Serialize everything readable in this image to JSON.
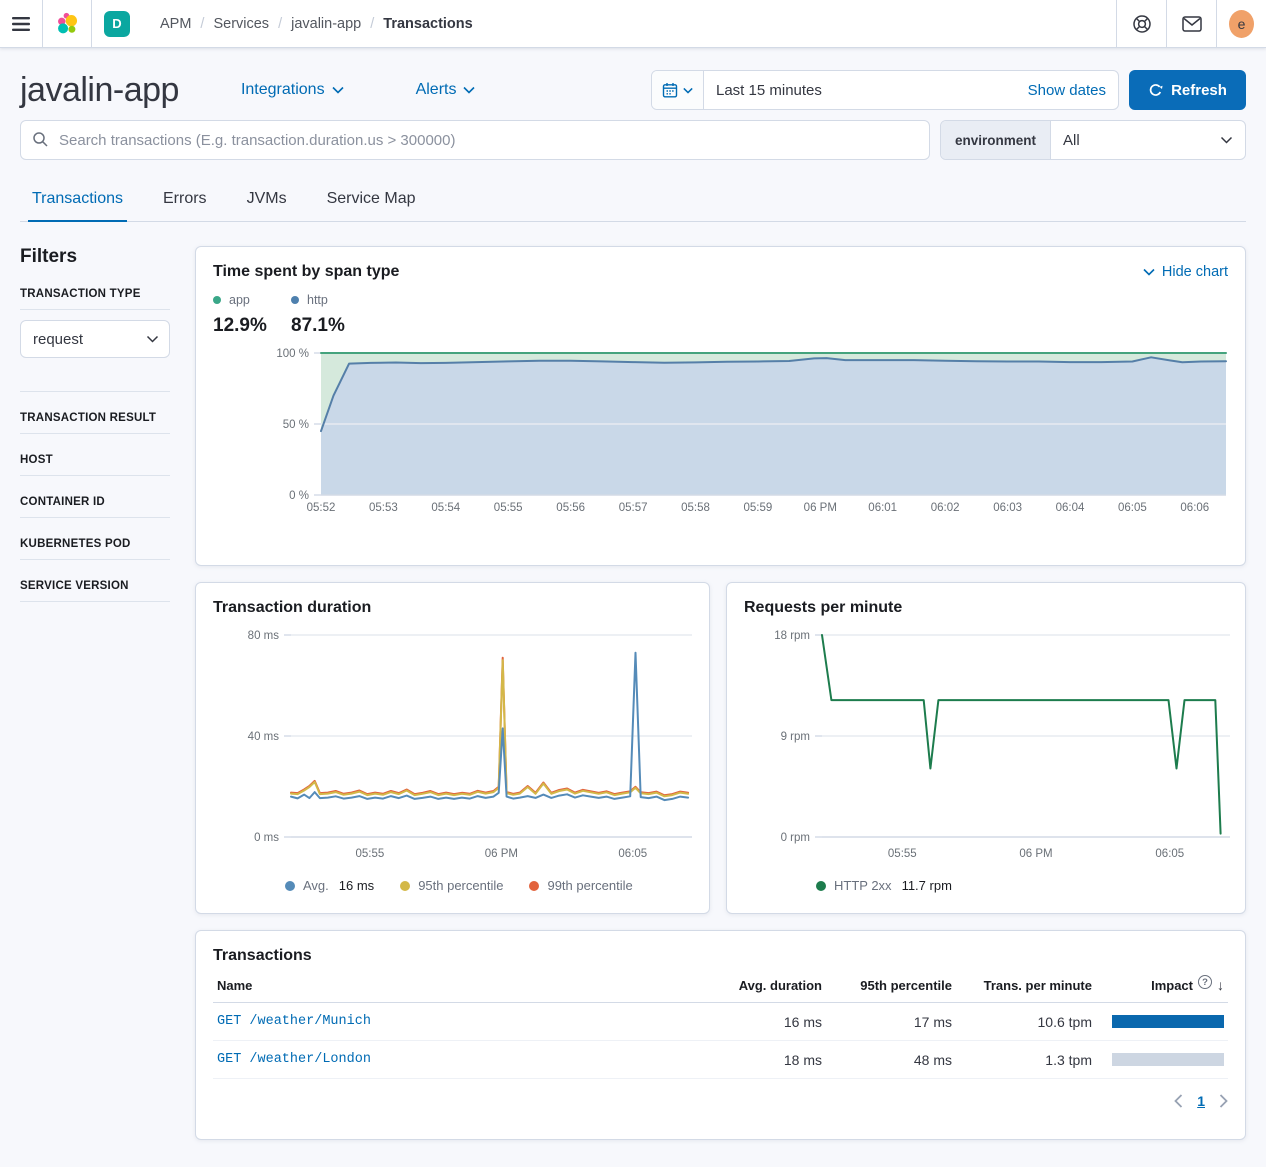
{
  "topbar": {
    "breadcrumbs": [
      "APM",
      "Services",
      "javalin-app",
      "Transactions"
    ],
    "space_badge": "D",
    "avatar_initial": "e"
  },
  "header": {
    "title": "javalin-app",
    "integrations_label": "Integrations",
    "alerts_label": "Alerts",
    "time_range": "Last 15 minutes",
    "show_dates_label": "Show dates",
    "refresh_label": "Refresh"
  },
  "search": {
    "placeholder": "Search transactions (E.g. transaction.duration.us > 300000)",
    "environment_label": "environment",
    "environment_value": "All"
  },
  "tabs": [
    {
      "label": "Transactions",
      "active": true
    },
    {
      "label": "Errors",
      "active": false
    },
    {
      "label": "JVMs",
      "active": false
    },
    {
      "label": "Service Map",
      "active": false
    }
  ],
  "filters": {
    "heading": "Filters",
    "type_facet_label": "TRANSACTION TYPE",
    "type_value": "request",
    "collapsed_facets": [
      "TRANSACTION RESULT",
      "HOST",
      "CONTAINER ID",
      "KUBERNETES POD",
      "SERVICE VERSION"
    ]
  },
  "span_panel": {
    "title": "Time spent by span type",
    "hide_chart_label": "Hide chart",
    "legend": [
      {
        "label": "app",
        "color": "#3aa788",
        "value": "12.9%"
      },
      {
        "label": "http",
        "color": "#4e80ae",
        "value": "87.1%"
      }
    ]
  },
  "duration_panel": {
    "title": "Transaction duration",
    "legend": [
      {
        "label": "Avg.",
        "value": "16 ms",
        "color": "#558bb8"
      },
      {
        "label": "95th percentile",
        "value": "",
        "color": "#d3b848"
      },
      {
        "label": "99th percentile",
        "value": "",
        "color": "#e2633d"
      }
    ]
  },
  "rpm_panel": {
    "title": "Requests per minute",
    "legend": [
      {
        "label": "HTTP 2xx",
        "value": "11.7 rpm",
        "color": "#1d7c4d"
      }
    ]
  },
  "table_panel": {
    "title": "Transactions",
    "columns": [
      "Name",
      "Avg. duration",
      "95th percentile",
      "Trans. per minute",
      "Impact"
    ],
    "rows": [
      {
        "name": "GET /weather/Munich",
        "avg_duration": "16 ms",
        "p95": "17 ms",
        "tpm": "10.6 tpm",
        "impact_pct": 100
      },
      {
        "name": "GET /weather/London",
        "avg_duration": "18 ms",
        "p95": "48 ms",
        "tpm": "1.3 tpm",
        "impact_pct": 0
      }
    ],
    "impact_fill": "#0a68ae",
    "impact_track": "#cdd6e2",
    "page": "1"
  },
  "chart_data": [
    {
      "type": "area",
      "title": "Time spent by span type",
      "subtitle": "stacked percentage of time by span type; app 12.9%, http 87.1%",
      "x_range": [
        0,
        14.5
      ],
      "y_range": [
        0,
        100
      ],
      "y_ticks": [
        {
          "v": 0,
          "label": "0 %"
        },
        {
          "v": 50,
          "label": "50 %"
        },
        {
          "v": 100,
          "label": "100 %"
        }
      ],
      "x_ticks": [
        {
          "v": 0,
          "label": "05:52"
        },
        {
          "v": 1,
          "label": "05:53"
        },
        {
          "v": 2,
          "label": "05:54"
        },
        {
          "v": 3,
          "label": "05:55"
        },
        {
          "v": 4,
          "label": "05:56"
        },
        {
          "v": 5,
          "label": "05:57"
        },
        {
          "v": 6,
          "label": "05:58"
        },
        {
          "v": 7,
          "label": "05:59"
        },
        {
          "v": 8,
          "label": "06 PM"
        },
        {
          "v": 9,
          "label": "06:01"
        },
        {
          "v": 10,
          "label": "06:02"
        },
        {
          "v": 11,
          "label": "06:03"
        },
        {
          "v": 12,
          "label": "06:04"
        },
        {
          "v": 13,
          "label": "06:05"
        },
        {
          "v": 14,
          "label": "06:06"
        }
      ],
      "series": [
        {
          "name": "app",
          "stroke": "#44a37d",
          "fill": "#d5e9dc",
          "points": [
            [
              0,
              100
            ],
            [
              14.5,
              100
            ]
          ]
        },
        {
          "name": "http",
          "stroke": "#557fa8",
          "fill": "#c9d8e8",
          "points": [
            [
              0,
              45
            ],
            [
              0.2,
              70
            ],
            [
              0.45,
              92.5
            ],
            [
              0.8,
              93
            ],
            [
              1.2,
              93.3
            ],
            [
              1.6,
              92.9
            ],
            [
              2,
              93
            ],
            [
              2.5,
              93.6
            ],
            [
              3,
              94.1
            ],
            [
              3.5,
              94.6
            ],
            [
              4,
              94.6
            ],
            [
              4.5,
              94.1
            ],
            [
              5,
              93.6
            ],
            [
              5.5,
              93.1
            ],
            [
              6,
              93.4
            ],
            [
              6.5,
              93.9
            ],
            [
              7,
              94
            ],
            [
              7.5,
              94.4
            ],
            [
              7.9,
              96.2
            ],
            [
              8.1,
              96.4
            ],
            [
              8.4,
              95
            ],
            [
              9,
              95
            ],
            [
              9.5,
              95
            ],
            [
              10,
              94.6
            ],
            [
              10.5,
              94.2
            ],
            [
              11,
              94
            ],
            [
              11.5,
              94
            ],
            [
              12,
              93.6
            ],
            [
              12.5,
              93.6
            ],
            [
              13,
              94
            ],
            [
              13.3,
              97
            ],
            [
              13.6,
              94.8
            ],
            [
              13.8,
              93.5
            ],
            [
              14.1,
              94
            ],
            [
              14.5,
              94.2
            ]
          ]
        }
      ],
      "summary": {
        "app": "12.9%",
        "http": "87.1%"
      }
    },
    {
      "type": "line",
      "title": "Transaction duration",
      "x_range": [
        0,
        15.25
      ],
      "y_range": [
        0,
        80
      ],
      "y_ticks": [
        {
          "v": 0,
          "label": "0 ms"
        },
        {
          "v": 40,
          "label": "40 ms"
        },
        {
          "v": 80,
          "label": "80 ms"
        }
      ],
      "x_ticks": [
        {
          "v": 3,
          "label": "05:55"
        },
        {
          "v": 8,
          "label": "06 PM"
        },
        {
          "v": 13,
          "label": "06:05"
        }
      ],
      "x": [
        0,
        0.25,
        0.5,
        0.7,
        0.9,
        1.1,
        1.4,
        1.7,
        2,
        2.3,
        2.6,
        2.9,
        3.2,
        3.5,
        3.8,
        4.1,
        4.4,
        4.7,
        5,
        5.3,
        5.6,
        5.9,
        6.2,
        6.5,
        6.8,
        7.1,
        7.4,
        7.7,
        7.9,
        8.05,
        8.2,
        8.45,
        8.7,
        9,
        9.3,
        9.6,
        9.9,
        10.2,
        10.5,
        10.8,
        11.1,
        11.4,
        11.7,
        12,
        12.3,
        12.6,
        12.9,
        13.1,
        13.3,
        13.6,
        13.9,
        14.2,
        14.5,
        14.8,
        15.1
      ],
      "series": [
        {
          "name": "99th percentile",
          "stroke": "#e2633d",
          "y": [
            17.6,
            17.4,
            18.8,
            20.2,
            22.2,
            17.4,
            17.6,
            18.2,
            17.1,
            17.6,
            18.4,
            17,
            17.6,
            17.1,
            18.2,
            17.4,
            18.8,
            17,
            17.5,
            18.2,
            17,
            17.6,
            17,
            17.5,
            17.1,
            18.3,
            17.6,
            18.2,
            19.9,
            71,
            17.8,
            17.1,
            17.6,
            20.2,
            17.5,
            21.6,
            17.5,
            18.6,
            19.2,
            17.6,
            18.7,
            18.1,
            17.5,
            18.1,
            17,
            17.6,
            18.1,
            19.9,
            17.7,
            17.4,
            18,
            16.5,
            17,
            18,
            17.5
          ]
        },
        {
          "name": "95th percentile",
          "stroke": "#d3b848",
          "y": [
            17.2,
            17,
            18.4,
            19.8,
            21.8,
            17,
            17.2,
            17.8,
            16.7,
            17.2,
            18,
            16.6,
            17.2,
            16.7,
            17.8,
            17,
            18.4,
            16.6,
            17.1,
            17.8,
            16.6,
            17.2,
            16.6,
            17.1,
            16.7,
            17.9,
            17.2,
            17.8,
            19.5,
            70,
            17.4,
            16.7,
            17.2,
            19.8,
            17.1,
            21.2,
            17.1,
            18.2,
            18.8,
            17.2,
            18.3,
            17.7,
            17.1,
            17.7,
            16.6,
            17.2,
            17.7,
            19.5,
            17.3,
            17,
            17.6,
            16.1,
            16.6,
            17.6,
            17.1
          ]
        },
        {
          "name": "Avg. 16 ms",
          "stroke": "#558bb8",
          "y": [
            16,
            15.3,
            16.8,
            15.4,
            17.8,
            15.4,
            15.6,
            16.1,
            15.2,
            15.6,
            16.2,
            15.1,
            15.6,
            15.2,
            16.2,
            15.4,
            16.4,
            15.1,
            15.5,
            16,
            15.1,
            15.6,
            15.1,
            15.6,
            15.2,
            16.2,
            15.5,
            16,
            17.5,
            43,
            16,
            15.2,
            15.6,
            16.2,
            15.5,
            16.8,
            15.5,
            16.4,
            16.9,
            15.6,
            16.5,
            16,
            15.5,
            16,
            15.1,
            15.6,
            16.1,
            73,
            15.8,
            15.4,
            16,
            14.6,
            15.1,
            16,
            15.6
          ]
        }
      ]
    },
    {
      "type": "line",
      "title": "Requests per minute",
      "x_range": [
        0,
        15.25
      ],
      "y_range": [
        0,
        18
      ],
      "y_ticks": [
        {
          "v": 0,
          "label": "0 rpm"
        },
        {
          "v": 9,
          "label": "9 rpm"
        },
        {
          "v": 18,
          "label": "18 rpm"
        }
      ],
      "x_ticks": [
        {
          "v": 3,
          "label": "05:55"
        },
        {
          "v": 8,
          "label": "06 PM"
        },
        {
          "v": 13,
          "label": "06:05"
        }
      ],
      "series": [
        {
          "name": "HTTP 2xx 11.7 rpm",
          "stroke": "#1d7c4d",
          "points": [
            [
              0,
              18
            ],
            [
              0.35,
              12.2
            ],
            [
              3.8,
              12.2
            ],
            [
              4.05,
              6.1
            ],
            [
              4.35,
              12.2
            ],
            [
              12.95,
              12.2
            ],
            [
              13.25,
              6.1
            ],
            [
              13.55,
              12.2
            ],
            [
              14.7,
              12.2
            ],
            [
              14.9,
              0.3
            ]
          ]
        }
      ]
    }
  ]
}
